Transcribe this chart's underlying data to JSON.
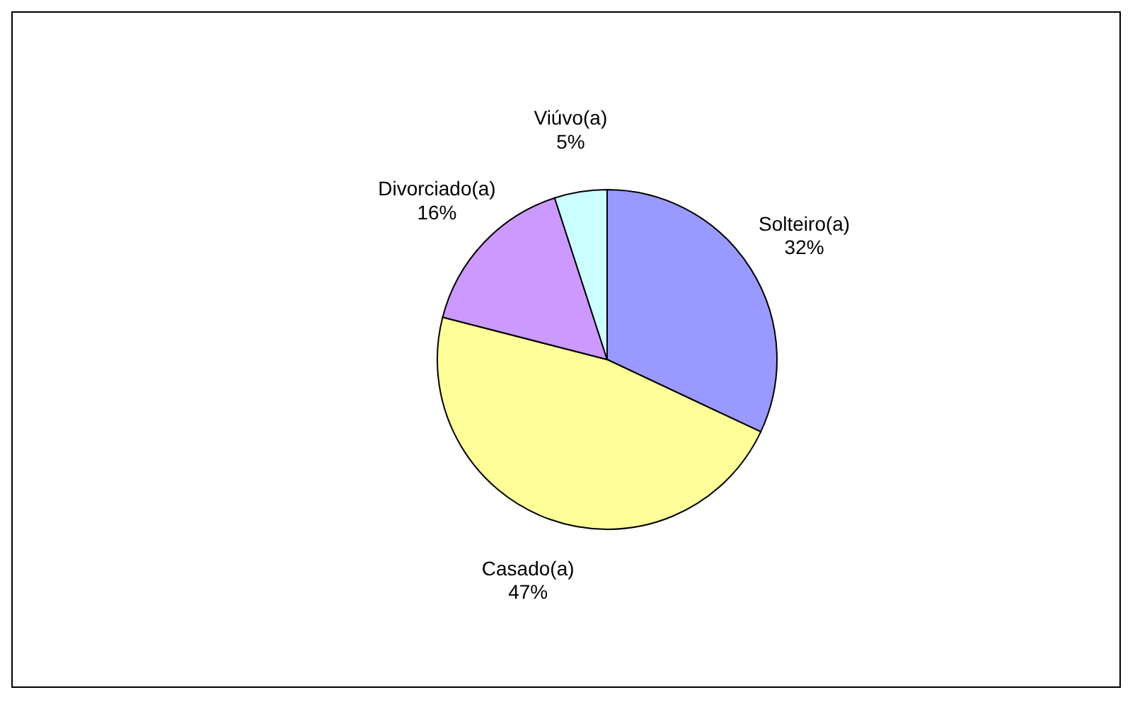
{
  "chart_data": {
    "type": "pie",
    "categories": [
      "Solteiro(a)",
      "Casado(a)",
      "Divorciado(a)",
      "Viúvo(a)"
    ],
    "values": [
      32,
      47,
      16,
      5
    ],
    "colors": [
      "#9999ff",
      "#ffff99",
      "#cc99ff",
      "#ccffff"
    ],
    "value_labels": [
      "32%",
      "47%",
      "16%",
      "5%"
    ],
    "legend": false
  }
}
